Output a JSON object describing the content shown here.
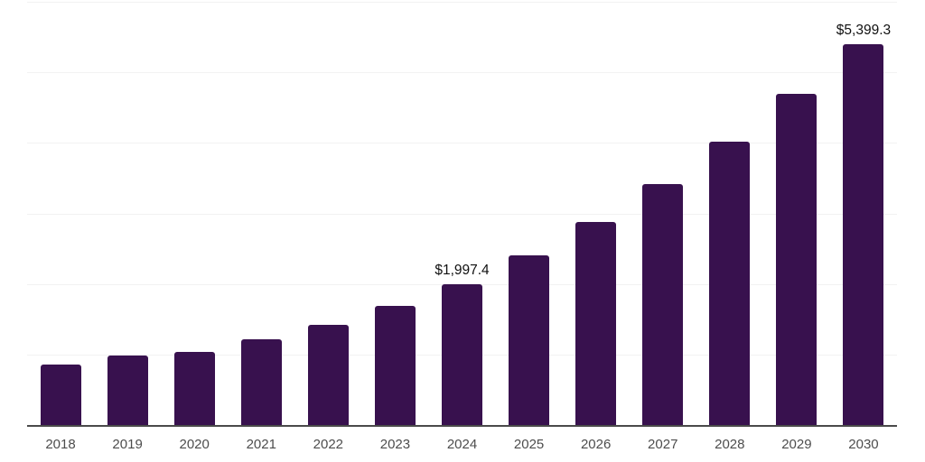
{
  "chart_data": {
    "type": "bar",
    "title": "",
    "xlabel": "",
    "ylabel": "",
    "categories": [
      "2018",
      "2019",
      "2020",
      "2021",
      "2022",
      "2023",
      "2024",
      "2025",
      "2026",
      "2027",
      "2028",
      "2029",
      "2030"
    ],
    "values": [
      855,
      990,
      1035,
      1220,
      1415,
      1690,
      1997.4,
      2400,
      2875,
      3420,
      4020,
      4700,
      5399.3
    ],
    "data_labels": {
      "2024": "$1,997.4",
      "2030": "$5,399.3"
    },
    "ylim": [
      0,
      6000
    ],
    "gridline_step": 1000,
    "grid": "horizontal-only",
    "legend_position": "none",
    "y_tick_labels": "none",
    "colors": {
      "bar": "#38114E",
      "axis_line": "#4a4a4a",
      "gridline": "#f2f2f2",
      "tick_label": "#4d4d4d",
      "value_label": "#111111",
      "background": "#ffffff"
    }
  }
}
